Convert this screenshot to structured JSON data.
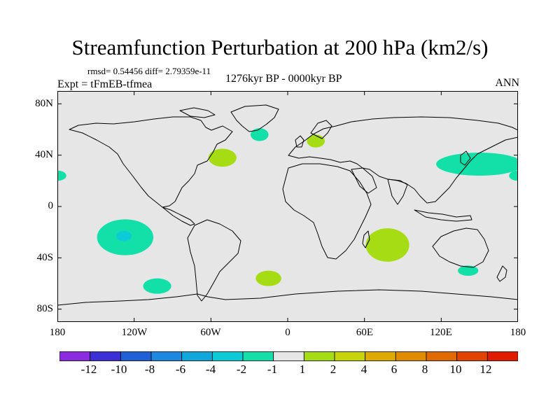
{
  "title": "Streamfunction Perturbation at 200 hPa (km2/s)",
  "stats": "rmsd= 0.54456 diff= 2.79359e-11",
  "period": "1276kyr BP - 0000kyr BP",
  "experiment": "Expt = tFmEB-tfmea",
  "season": "ANN",
  "lat_ticks": [
    "80N",
    "40N",
    "0",
    "40S",
    "80S"
  ],
  "lon_ticks": [
    "180",
    "120W",
    "60W",
    "0",
    "60E",
    "120E",
    "180"
  ],
  "colorbar": {
    "labels": [
      "-12",
      "-10",
      "-8",
      "-6",
      "-4",
      "-2",
      "-1",
      "1",
      "2",
      "4",
      "6",
      "8",
      "10",
      "12"
    ],
    "colors": [
      "#8b2be2",
      "#3d2fd6",
      "#1f60d9",
      "#1e88e0",
      "#10a8dc",
      "#0ccad6",
      "#13e0a8",
      "#e6e6e6",
      "#a6dc14",
      "#c8d40a",
      "#dcaa00",
      "#e08c00",
      "#e06a00",
      "#e04400",
      "#e01b00"
    ]
  },
  "map": {
    "background_color": "#e6e6e6",
    "coast_color": "#000000",
    "anomalies": [
      {
        "name": "pacific-south-anomaly",
        "lon": -127,
        "lat": -24,
        "rlon": 22,
        "rlat": 14,
        "level": -2
      },
      {
        "name": "pacific-south-core-anomaly",
        "lon": -128,
        "lat": -23,
        "rlon": 6,
        "rlat": 4,
        "level": -4
      },
      {
        "name": "south-pacific-high-lat-anomaly",
        "lon": -102,
        "lat": -62,
        "rlon": 11,
        "rlat": 6,
        "level": -2
      },
      {
        "name": "north-atlantic-anomaly",
        "lon": -22,
        "lat": 56,
        "rlon": 7,
        "rlat": 5,
        "level": -2
      },
      {
        "name": "western-atlantic-anomaly",
        "lon": -51,
        "lat": 38,
        "rlon": 11,
        "rlat": 7,
        "level": 1
      },
      {
        "name": "europe-anomaly",
        "lon": 22,
        "lat": 51,
        "rlon": 7,
        "rlat": 5,
        "level": 1
      },
      {
        "name": "south-atlantic-anomaly",
        "lon": -15,
        "lat": -56,
        "rlon": 10,
        "rlat": 6,
        "level": 1
      },
      {
        "name": "indian-ocean-anomaly",
        "lon": 78,
        "lat": -30,
        "rlon": 17,
        "rlat": 13,
        "level": 1
      },
      {
        "name": "south-australia-anomaly",
        "lon": 141,
        "lat": -50,
        "rlon": 8,
        "rlat": 4,
        "level": -2
      },
      {
        "name": "east-asia-anomaly",
        "lon": 150,
        "lat": 33,
        "rlon": 34,
        "rlat": 9,
        "level": -2
      },
      {
        "name": "dateline-anomaly",
        "lon": -180,
        "lat": 24,
        "rlon": 7,
        "rlat": 4,
        "level": -2
      }
    ]
  }
}
